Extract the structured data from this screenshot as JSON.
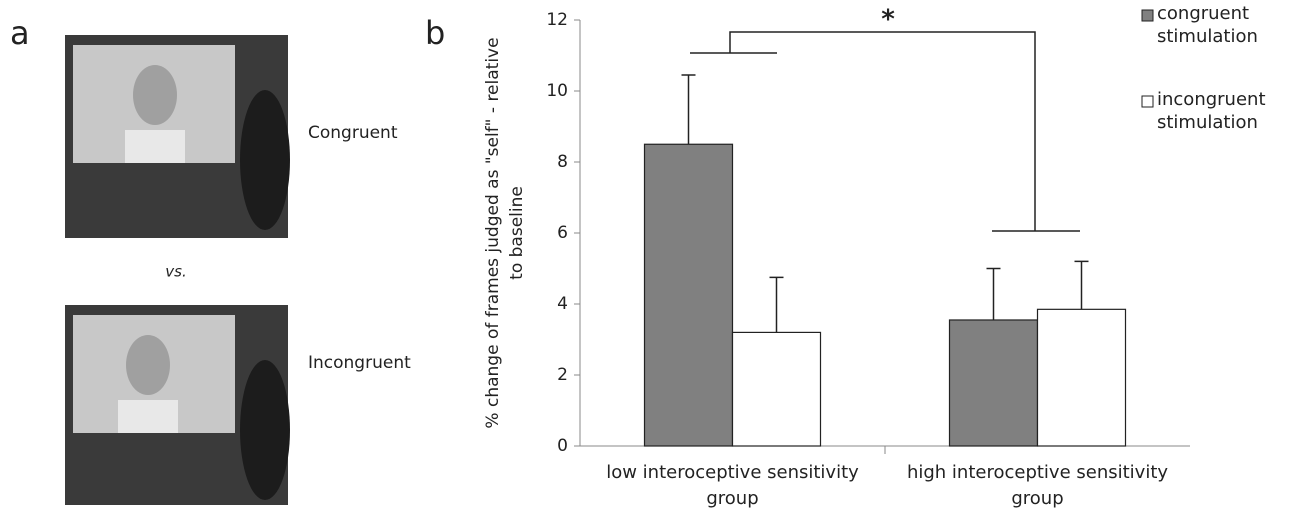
{
  "panel_a": {
    "label": "a",
    "conditions": [
      "Congruent",
      "Incongruent"
    ],
    "separator": "vs."
  },
  "chart_data": {
    "type": "bar",
    "panel_label": "b",
    "ylabel": "% change of frames judged as \"self\" - relative to baseline",
    "categories": [
      "low interoceptive sensitivity group",
      "high interoceptive sensitivity group"
    ],
    "series": [
      {
        "name": "congruent stimulation",
        "color": "#808080",
        "values": [
          8.5,
          3.55
        ],
        "errors": [
          1.95,
          1.45
        ]
      },
      {
        "name": "incongruent stimulation",
        "color": "#ffffff",
        "values": [
          3.2,
          3.85
        ],
        "errors": [
          1.55,
          1.35
        ]
      }
    ],
    "ylim": [
      0,
      12
    ],
    "yticks": [
      0,
      2,
      4,
      6,
      8,
      10,
      12
    ],
    "annotation": "*",
    "legend": "top-right"
  }
}
